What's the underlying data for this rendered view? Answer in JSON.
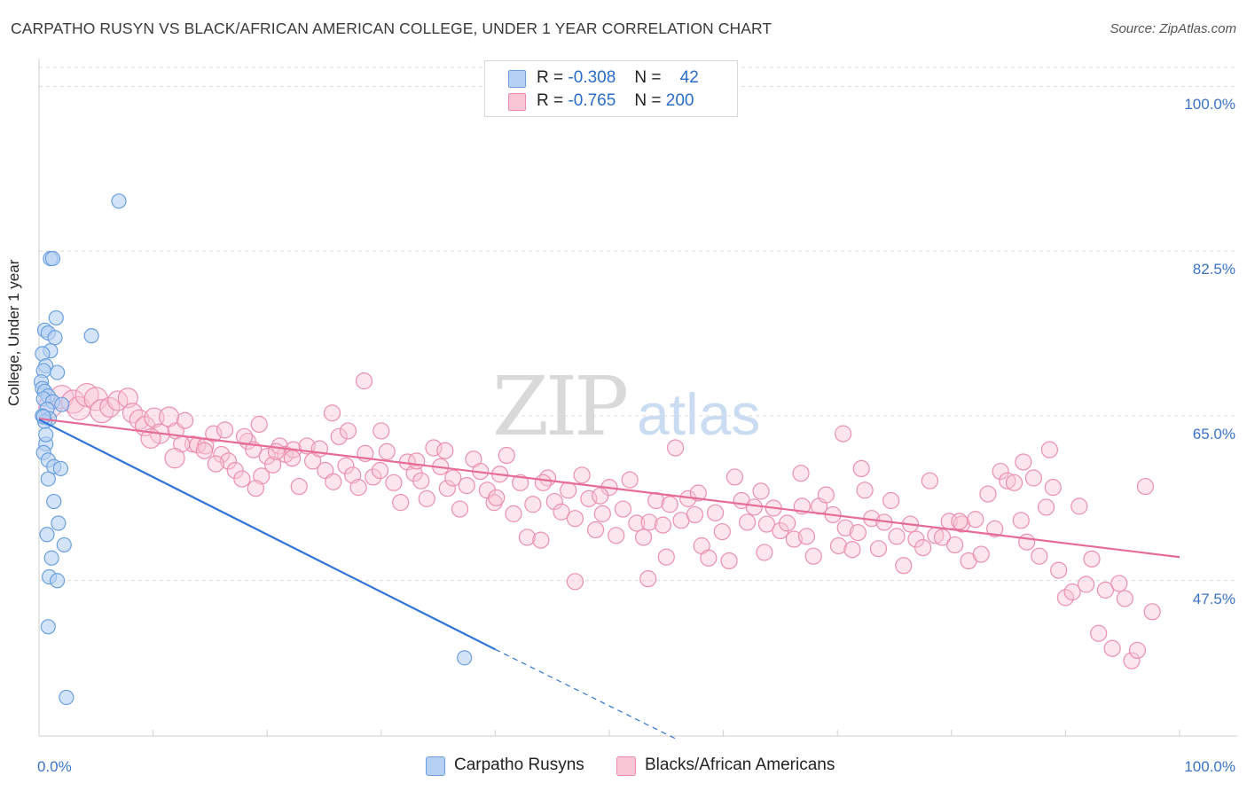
{
  "title": "CARPATHO RUSYN VS BLACK/AFRICAN AMERICAN COLLEGE, UNDER 1 YEAR CORRELATION CHART",
  "source": "Source: ZipAtlas.com",
  "watermark": {
    "zip": "ZIP",
    "atlas": "atlas"
  },
  "legend": [
    {
      "r_label": "R =",
      "r_value": "-0.308",
      "n_label": "N =",
      "n_value": "42",
      "fill": "#b6d0f3",
      "stroke": "#6a9fe0"
    },
    {
      "r_label": "R =",
      "r_value": "-0.765",
      "n_label": "N =",
      "n_value": "200",
      "fill": "#f9c6d5",
      "stroke": "#e98aa8"
    }
  ],
  "bottom_legend": [
    {
      "label": "Carpatho Rusyns",
      "fill": "#b6d0f3",
      "stroke": "#6a9fe0"
    },
    {
      "label": "Blacks/African Americans",
      "fill": "#f9c6d5",
      "stroke": "#e98aa8"
    }
  ],
  "colors": {
    "blue": "#2f74d6",
    "pink": "#e66c97",
    "tick_label": "#3a73c8",
    "grid": "#d9d9d9"
  },
  "chart_data": {
    "type": "scatter",
    "title": "CARPATHO RUSYN VS BLACK/AFRICAN AMERICAN COLLEGE, UNDER 1 YEAR CORRELATION CHART",
    "xlabel": "",
    "ylabel": "College, Under 1 year",
    "xlim": [
      0,
      100
    ],
    "ylim": [
      31,
      102
    ],
    "x_tick_labels": [
      "0.0%",
      "100.0%"
    ],
    "y_ticks": [
      47.5,
      65.0,
      82.5,
      100.0
    ],
    "y_tick_labels": [
      "47.5%",
      "65.0%",
      "82.5%",
      "100.0%"
    ],
    "grid": true,
    "legend_position": "top-center",
    "series": [
      {
        "name": "Carpatho Rusyns",
        "color": "#b6d0f3",
        "points": [
          [
            7.0,
            87.8
          ],
          [
            1.0,
            81.7
          ],
          [
            1.2,
            81.7
          ],
          [
            1.5,
            75.4
          ],
          [
            0.5,
            74.1
          ],
          [
            0.8,
            73.8
          ],
          [
            1.4,
            73.3
          ],
          [
            4.6,
            73.5
          ],
          [
            1.0,
            71.9
          ],
          [
            0.3,
            71.6
          ],
          [
            0.6,
            70.3
          ],
          [
            0.4,
            69.8
          ],
          [
            1.6,
            69.6
          ],
          [
            0.2,
            68.6
          ],
          [
            0.3,
            67.9
          ],
          [
            0.5,
            67.6
          ],
          [
            0.8,
            67.1
          ],
          [
            0.4,
            66.8
          ],
          [
            1.2,
            66.5
          ],
          [
            2.0,
            66.2
          ],
          [
            0.7,
            65.7
          ],
          [
            0.3,
            65.0
          ],
          [
            0.9,
            64.7
          ],
          [
            0.5,
            64.4
          ],
          [
            0.6,
            62.0
          ],
          [
            0.4,
            61.1
          ],
          [
            0.8,
            60.3
          ],
          [
            1.3,
            59.6
          ],
          [
            1.9,
            59.4
          ],
          [
            0.8,
            58.3
          ],
          [
            1.3,
            55.9
          ],
          [
            1.7,
            53.6
          ],
          [
            0.7,
            52.4
          ],
          [
            2.2,
            51.3
          ],
          [
            1.1,
            49.9
          ],
          [
            0.9,
            47.9
          ],
          [
            1.6,
            47.5
          ],
          [
            0.8,
            42.6
          ],
          [
            37.3,
            39.3
          ],
          [
            2.4,
            35.1
          ],
          [
            0.4,
            64.9
          ],
          [
            0.6,
            63.0
          ]
        ]
      },
      {
        "name": "Blacks/African Americans",
        "color": "#f9c6d5",
        "points": [
          [
            1.0,
            66.0
          ],
          [
            2.0,
            67.0
          ],
          [
            3.0,
            66.5
          ],
          [
            3.5,
            65.8
          ],
          [
            4.2,
            67.2
          ],
          [
            5.0,
            66.8
          ],
          [
            5.5,
            65.5
          ],
          [
            6.2,
            65.9
          ],
          [
            6.9,
            66.6
          ],
          [
            7.8,
            66.9
          ],
          [
            8.2,
            65.3
          ],
          [
            8.8,
            64.6
          ],
          [
            9.3,
            63.9
          ],
          [
            10.1,
            64.8
          ],
          [
            10.6,
            63.1
          ],
          [
            11.4,
            64.9
          ],
          [
            12.0,
            63.4
          ],
          [
            12.8,
            64.5
          ],
          [
            13.5,
            62.0
          ],
          [
            13.9,
            61.9
          ],
          [
            14.6,
            61.8
          ],
          [
            15.3,
            63.1
          ],
          [
            16.0,
            60.9
          ],
          [
            16.6,
            60.2
          ],
          [
            17.2,
            59.2
          ],
          [
            17.8,
            58.3
          ],
          [
            18.3,
            62.3
          ],
          [
            18.8,
            61.4
          ],
          [
            19.5,
            58.6
          ],
          [
            20.0,
            60.7
          ],
          [
            20.5,
            59.8
          ],
          [
            21.1,
            61.8
          ],
          [
            21.6,
            60.9
          ],
          [
            22.3,
            61.4
          ],
          [
            22.8,
            57.5
          ],
          [
            23.5,
            61.8
          ],
          [
            24.0,
            60.2
          ],
          [
            24.6,
            61.5
          ],
          [
            25.1,
            59.2
          ],
          [
            25.8,
            58.0
          ],
          [
            26.3,
            62.8
          ],
          [
            26.9,
            59.7
          ],
          [
            27.5,
            58.7
          ],
          [
            28.0,
            57.4
          ],
          [
            28.6,
            61.0
          ],
          [
            29.3,
            58.5
          ],
          [
            29.9,
            59.2
          ],
          [
            30.5,
            61.2
          ],
          [
            31.1,
            57.9
          ],
          [
            31.7,
            55.8
          ],
          [
            32.3,
            60.1
          ],
          [
            32.9,
            58.9
          ],
          [
            33.5,
            58.1
          ],
          [
            34.0,
            56.2
          ],
          [
            34.6,
            61.6
          ],
          [
            35.2,
            59.6
          ],
          [
            35.8,
            57.3
          ],
          [
            36.3,
            58.4
          ],
          [
            36.9,
            55.1
          ],
          [
            37.5,
            57.6
          ],
          [
            38.1,
            60.4
          ],
          [
            38.7,
            59.1
          ],
          [
            39.3,
            57.1
          ],
          [
            39.9,
            55.8
          ],
          [
            40.4,
            58.8
          ],
          [
            41.0,
            60.8
          ],
          [
            41.6,
            54.6
          ],
          [
            42.2,
            57.9
          ],
          [
            42.8,
            52.1
          ],
          [
            43.3,
            55.6
          ],
          [
            44.0,
            51.8
          ],
          [
            44.6,
            58.4
          ],
          [
            45.2,
            55.9
          ],
          [
            45.8,
            54.8
          ],
          [
            46.4,
            57.1
          ],
          [
            47.0,
            54.1
          ],
          [
            47.6,
            58.7
          ],
          [
            48.2,
            56.2
          ],
          [
            48.8,
            52.9
          ],
          [
            49.4,
            54.6
          ],
          [
            50.0,
            57.4
          ],
          [
            50.6,
            52.3
          ],
          [
            51.2,
            55.1
          ],
          [
            51.8,
            58.2
          ],
          [
            52.4,
            53.6
          ],
          [
            53.0,
            52.1
          ],
          [
            53.5,
            53.7
          ],
          [
            54.1,
            56.0
          ],
          [
            54.7,
            53.4
          ],
          [
            55.3,
            55.6
          ],
          [
            55.8,
            61.6
          ],
          [
            56.3,
            53.9
          ],
          [
            56.9,
            56.2
          ],
          [
            57.5,
            54.5
          ],
          [
            58.1,
            51.2
          ],
          [
            58.7,
            49.9
          ],
          [
            59.3,
            54.7
          ],
          [
            59.9,
            52.7
          ],
          [
            60.5,
            49.6
          ],
          [
            61.0,
            58.5
          ],
          [
            61.6,
            56.0
          ],
          [
            62.1,
            53.7
          ],
          [
            62.7,
            55.3
          ],
          [
            63.3,
            57.0
          ],
          [
            63.8,
            53.5
          ],
          [
            64.4,
            55.2
          ],
          [
            65.0,
            52.8
          ],
          [
            65.6,
            53.6
          ],
          [
            66.2,
            51.9
          ],
          [
            66.8,
            58.9
          ],
          [
            67.3,
            52.2
          ],
          [
            67.9,
            50.1
          ],
          [
            68.4,
            55.4
          ],
          [
            69.0,
            56.6
          ],
          [
            69.6,
            54.5
          ],
          [
            70.1,
            51.2
          ],
          [
            70.7,
            53.1
          ],
          [
            71.3,
            50.8
          ],
          [
            71.8,
            52.6
          ],
          [
            72.4,
            57.1
          ],
          [
            73.0,
            54.1
          ],
          [
            73.6,
            50.9
          ],
          [
            74.1,
            53.7
          ],
          [
            74.7,
            56.0
          ],
          [
            75.2,
            52.2
          ],
          [
            75.8,
            49.1
          ],
          [
            76.4,
            53.5
          ],
          [
            76.9,
            51.9
          ],
          [
            77.5,
            51.0
          ],
          [
            78.1,
            58.1
          ],
          [
            78.6,
            52.3
          ],
          [
            79.2,
            52.1
          ],
          [
            79.8,
            53.8
          ],
          [
            80.3,
            51.3
          ],
          [
            80.9,
            53.5
          ],
          [
            81.5,
            49.6
          ],
          [
            82.1,
            54.0
          ],
          [
            82.6,
            50.3
          ],
          [
            83.2,
            56.7
          ],
          [
            83.8,
            53.0
          ],
          [
            84.3,
            59.1
          ],
          [
            84.9,
            58.1
          ],
          [
            85.5,
            57.9
          ],
          [
            86.1,
            53.9
          ],
          [
            86.6,
            51.6
          ],
          [
            87.2,
            58.4
          ],
          [
            87.7,
            50.1
          ],
          [
            88.3,
            55.3
          ],
          [
            88.9,
            57.4
          ],
          [
            89.4,
            48.6
          ],
          [
            90.0,
            45.7
          ],
          [
            90.6,
            46.3
          ],
          [
            91.2,
            55.4
          ],
          [
            91.8,
            47.1
          ],
          [
            92.3,
            49.8
          ],
          [
            92.9,
            41.9
          ],
          [
            93.5,
            46.5
          ],
          [
            94.1,
            40.3
          ],
          [
            94.7,
            47.2
          ],
          [
            95.2,
            45.6
          ],
          [
            95.8,
            39.0
          ],
          [
            96.3,
            40.1
          ],
          [
            97.0,
            57.5
          ],
          [
            97.6,
            44.2
          ],
          [
            28.5,
            68.7
          ],
          [
            19.0,
            57.3
          ],
          [
            47.0,
            47.4
          ],
          [
            53.4,
            47.7
          ],
          [
            63.6,
            50.5
          ],
          [
            70.5,
            63.1
          ],
          [
            33.1,
            60.2
          ],
          [
            40.1,
            56.3
          ],
          [
            55.0,
            50.0
          ],
          [
            80.7,
            53.8
          ],
          [
            86.3,
            60.1
          ],
          [
            88.6,
            61.4
          ],
          [
            72.1,
            59.4
          ],
          [
            66.9,
            55.4
          ],
          [
            57.8,
            56.8
          ],
          [
            49.2,
            56.5
          ],
          [
            44.2,
            57.9
          ],
          [
            35.6,
            61.3
          ],
          [
            25.7,
            65.3
          ],
          [
            19.3,
            64.1
          ],
          [
            14.5,
            61.3
          ],
          [
            9.8,
            62.6
          ],
          [
            12.5,
            62.0
          ],
          [
            16.3,
            63.5
          ],
          [
            22.2,
            60.5
          ],
          [
            27.1,
            63.4
          ],
          [
            30.0,
            63.4
          ],
          [
            20.8,
            61.2
          ],
          [
            15.5,
            59.9
          ],
          [
            11.9,
            60.5
          ],
          [
            18.0,
            62.8
          ]
        ]
      }
    ],
    "trend_lines": [
      {
        "series": "Carpatho Rusyns",
        "x0": 0,
        "y0": 64.6,
        "x1": 40,
        "y1": 40.2,
        "dashed_to": [
          56,
          30.6
        ]
      },
      {
        "series": "Blacks/African Americans",
        "x0": 0,
        "y0": 64.7,
        "x1": 100,
        "y1": 50.0
      }
    ]
  },
  "y_axis_label": "College, Under 1 year"
}
